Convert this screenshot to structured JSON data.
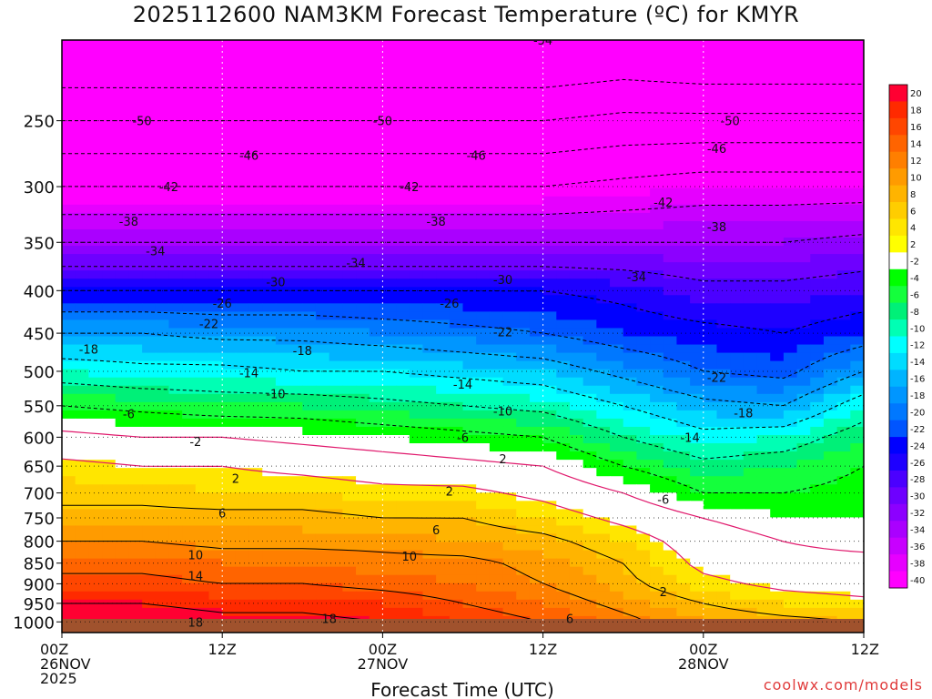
{
  "chart_data": {
    "type": "heatmap",
    "title": "2025112600 NAM3KM Forecast Temperature (ºC) for KMYR",
    "xlabel": "Forecast Time (UTC)",
    "ylabel": "",
    "y_scale": "log",
    "ylim": [
      1030,
      200
    ],
    "y_ticks": [
      250,
      300,
      350,
      400,
      450,
      500,
      550,
      600,
      650,
      700,
      750,
      800,
      850,
      900,
      950,
      1000
    ],
    "x_unit": "hours since 2025-11-26 00Z",
    "xlim": [
      0,
      60
    ],
    "x_ticks": [
      {
        "hour": 0,
        "lines": [
          "00Z",
          "26NOV",
          "2025"
        ]
      },
      {
        "hour": 12,
        "lines": [
          "12Z"
        ]
      },
      {
        "hour": 24,
        "lines": [
          "00Z",
          "27NOV"
        ]
      },
      {
        "hour": 36,
        "lines": [
          "12Z"
        ]
      },
      {
        "hour": 48,
        "lines": [
          "00Z",
          "28NOV"
        ]
      },
      {
        "hour": 60,
        "lines": [
          "12Z"
        ]
      }
    ],
    "grid": true,
    "colorbar": {
      "placement": "right",
      "levels": [
        20,
        18,
        16,
        14,
        12,
        10,
        8,
        6,
        4,
        2,
        -2,
        -4,
        -6,
        -8,
        -10,
        -12,
        -14,
        -16,
        -18,
        -20,
        -22,
        -24,
        -26,
        -28,
        -30,
        -32,
        -34,
        -36,
        -38,
        -40
      ],
      "colors": [
        "#ff0032",
        "#ff2a00",
        "#ff4600",
        "#ff6400",
        "#ff7f00",
        "#ff9b00",
        "#ffb400",
        "#ffcd00",
        "#ffe600",
        "#ffff00",
        "#ffffff",
        "#00ff00",
        "#14ff3c",
        "#00f078",
        "#00ffb4",
        "#00ffff",
        "#00dcff",
        "#00b4ff",
        "#0096ff",
        "#0078ff",
        "#0055ff",
        "#0000ff",
        "#1e00ff",
        "#4b00ff",
        "#6e00ff",
        "#8c00ff",
        "#aa00ff",
        "#c800ff",
        "#e600ff",
        "#ff00ff"
      ]
    },
    "x": [
      0,
      6,
      12,
      18,
      24,
      30,
      36,
      42,
      48,
      54,
      60
    ],
    "series": [
      {
        "pressure": 250,
        "temps": [
          -50,
          -50,
          -50,
          -50,
          -50,
          -50,
          -50,
          -49,
          -49,
          -49,
          -49
        ]
      },
      {
        "pressure": 300,
        "temps": [
          -42,
          -42,
          -42,
          -42,
          -42,
          -42,
          -42,
          -41,
          -40,
          -40,
          -40
        ]
      },
      {
        "pressure": 350,
        "temps": [
          -34,
          -34,
          -34,
          -34,
          -34,
          -34,
          -34,
          -34,
          -34,
          -34,
          -33
        ]
      },
      {
        "pressure": 400,
        "temps": [
          -26,
          -26,
          -26,
          -26,
          -26,
          -26,
          -26,
          -27,
          -29,
          -29,
          -28
        ]
      },
      {
        "pressure": 450,
        "temps": [
          -18,
          -18,
          -19,
          -19,
          -20,
          -21,
          -22,
          -24,
          -25,
          -26,
          -24
        ]
      },
      {
        "pressure": 500,
        "temps": [
          -12,
          -13,
          -13,
          -14,
          -14,
          -15,
          -16,
          -19,
          -22,
          -23,
          -18
        ]
      },
      {
        "pressure": 550,
        "temps": [
          -6,
          -7,
          -8,
          -8,
          -9,
          -10,
          -11,
          -14,
          -17,
          -18,
          -12
        ]
      },
      {
        "pressure": 600,
        "temps": [
          -1,
          -2,
          -2,
          -3,
          -4,
          -5,
          -6,
          -10,
          -13,
          -12,
          -8
        ]
      },
      {
        "pressure": 650,
        "temps": [
          3,
          2,
          2,
          1,
          0,
          -1,
          -2,
          -6,
          -9,
          -8,
          -6
        ]
      },
      {
        "pressure": 700,
        "temps": [
          5,
          5,
          4,
          4,
          3,
          3,
          1,
          -2,
          -6,
          -6,
          -5
        ]
      },
      {
        "pressure": 750,
        "temps": [
          7,
          7,
          7,
          7,
          6,
          6,
          4,
          1,
          -2,
          -4,
          -4
        ]
      },
      {
        "pressure": 800,
        "temps": [
          10,
          10,
          9,
          9,
          9,
          8,
          7,
          4,
          0,
          -2,
          -3
        ]
      },
      {
        "pressure": 850,
        "temps": [
          13,
          13,
          12,
          12,
          11,
          11,
          9,
          6,
          1,
          -1,
          -1
        ]
      },
      {
        "pressure": 900,
        "temps": [
          15,
          15,
          14,
          14,
          13,
          12,
          10,
          7,
          3,
          1,
          0
        ]
      },
      {
        "pressure": 950,
        "temps": [
          18,
          18,
          17,
          17,
          16,
          14,
          12,
          9,
          6,
          4,
          3
        ]
      },
      {
        "pressure": 1000,
        "temps": [
          20,
          20,
          19,
          19,
          18,
          16,
          14,
          11,
          8,
          7,
          6
        ]
      }
    ],
    "annotations": [
      {
        "hour": 36,
        "pressure": 200,
        "text": "-54"
      },
      {
        "hour": 6,
        "pressure": 250,
        "text": "-50"
      },
      {
        "hour": 24,
        "pressure": 250,
        "text": "-50"
      },
      {
        "hour": 50,
        "pressure": 250,
        "text": "-50"
      },
      {
        "hour": 14,
        "pressure": 275,
        "text": "-46"
      },
      {
        "hour": 31,
        "pressure": 275,
        "text": "-46"
      },
      {
        "hour": 49,
        "pressure": 270,
        "text": "-46"
      },
      {
        "hour": 8,
        "pressure": 300,
        "text": "-42"
      },
      {
        "hour": 26,
        "pressure": 300,
        "text": "-42"
      },
      {
        "hour": 45,
        "pressure": 313,
        "text": "-42"
      },
      {
        "hour": 5,
        "pressure": 330,
        "text": "-38"
      },
      {
        "hour": 28,
        "pressure": 330,
        "text": "-38"
      },
      {
        "hour": 49,
        "pressure": 335,
        "text": "-38"
      },
      {
        "hour": 7,
        "pressure": 358,
        "text": "-34"
      },
      {
        "hour": 22,
        "pressure": 370,
        "text": "-34"
      },
      {
        "hour": 43,
        "pressure": 385,
        "text": "-34"
      },
      {
        "hour": 16,
        "pressure": 390,
        "text": "-30"
      },
      {
        "hour": 33,
        "pressure": 388,
        "text": "-30"
      },
      {
        "hour": 12,
        "pressure": 414,
        "text": "-26"
      },
      {
        "hour": 29,
        "pressure": 414,
        "text": "-26"
      },
      {
        "hour": 11,
        "pressure": 438,
        "text": "-22"
      },
      {
        "hour": 33,
        "pressure": 448,
        "text": "-22"
      },
      {
        "hour": 49,
        "pressure": 508,
        "text": "-22"
      },
      {
        "hour": 2,
        "pressure": 470,
        "text": "-18"
      },
      {
        "hour": 18,
        "pressure": 472,
        "text": "-18"
      },
      {
        "hour": 51,
        "pressure": 561,
        "text": "-18"
      },
      {
        "hour": 14,
        "pressure": 502,
        "text": "-14"
      },
      {
        "hour": 30,
        "pressure": 518,
        "text": "-14"
      },
      {
        "hour": 47,
        "pressure": 600,
        "text": "-14"
      },
      {
        "hour": 16,
        "pressure": 532,
        "text": "-10"
      },
      {
        "hour": 33,
        "pressure": 558,
        "text": "-10"
      },
      {
        "hour": 5,
        "pressure": 562,
        "text": "-6"
      },
      {
        "hour": 30,
        "pressure": 600,
        "text": "-6"
      },
      {
        "hour": 45,
        "pressure": 712,
        "text": "-6"
      },
      {
        "hour": 10,
        "pressure": 607,
        "text": "-2"
      },
      {
        "hour": 33,
        "pressure": 637,
        "text": "2"
      },
      {
        "hour": 13,
        "pressure": 672,
        "text": "2"
      },
      {
        "hour": 29,
        "pressure": 696,
        "text": "2"
      },
      {
        "hour": 45,
        "pressure": 920,
        "text": "2"
      },
      {
        "hour": 12,
        "pressure": 740,
        "text": "6"
      },
      {
        "hour": 28,
        "pressure": 775,
        "text": "6"
      },
      {
        "hour": 38,
        "pressure": 990,
        "text": "6"
      },
      {
        "hour": 10,
        "pressure": 830,
        "text": "10"
      },
      {
        "hour": 26,
        "pressure": 834,
        "text": "10"
      },
      {
        "hour": 10,
        "pressure": 880,
        "text": "14"
      },
      {
        "hour": 20,
        "pressure": 990,
        "text": "18"
      },
      {
        "hour": 10,
        "pressure": 1000,
        "text": "18"
      }
    ]
  },
  "credit": "coolwx.com/models"
}
